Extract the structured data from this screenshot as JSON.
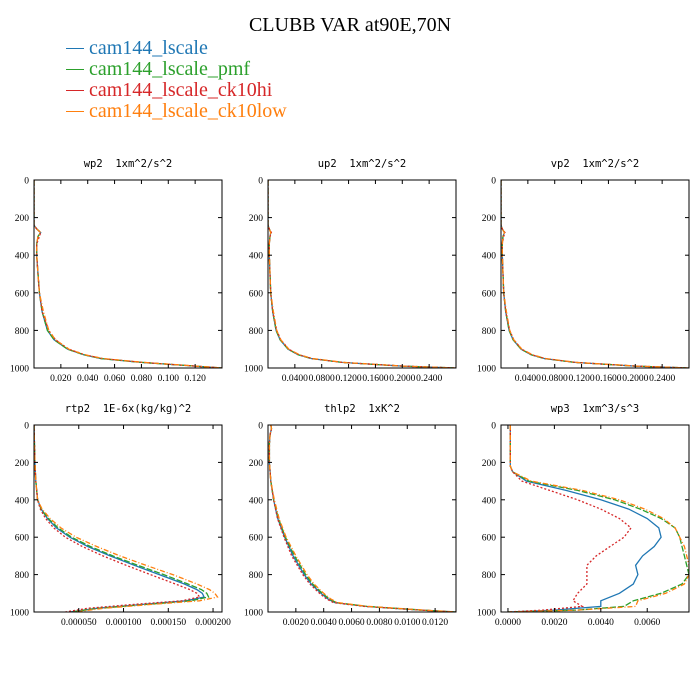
{
  "title": "CLUBB VAR at90E,70N",
  "legend": [
    {
      "name": "cam144_lscale",
      "color": "#1f77b4"
    },
    {
      "name": "cam144_lscale_pmf",
      "color": "#2ca02c"
    },
    {
      "name": "cam144_lscale_ck10hi",
      "color": "#d62728"
    },
    {
      "name": "cam144_lscale_ck10low",
      "color": "#ff7f0e"
    }
  ],
  "chart_data": [
    {
      "type": "line",
      "title": "wp2  1xm^2/s^2",
      "xlim": [
        0,
        0.14
      ],
      "ylim": [
        1000,
        0
      ],
      "xticks": [
        0.02,
        0.04,
        0.06,
        0.08,
        0.1,
        0.12
      ],
      "xtick_labels": [
        "0.020",
        "0.040",
        "0.060",
        "0.080",
        "0.100",
        "0.120"
      ],
      "yticks": [
        0,
        200,
        400,
        600,
        800,
        1000
      ],
      "y": [
        0,
        240,
        260,
        280,
        300,
        340,
        400,
        500,
        600,
        700,
        800,
        850,
        900,
        930,
        950,
        970,
        990,
        1000
      ],
      "series": [
        {
          "values": [
            0,
            0,
            0.002,
            0.005,
            0.003,
            0.002,
            0.002,
            0.003,
            0.004,
            0.006,
            0.01,
            0.015,
            0.025,
            0.037,
            0.05,
            0.08,
            0.12,
            0.14
          ]
        },
        {
          "values": [
            0,
            0,
            0.002,
            0.005,
            0.003,
            0.002,
            0.002,
            0.003,
            0.004,
            0.006,
            0.01,
            0.015,
            0.025,
            0.037,
            0.05,
            0.08,
            0.12,
            0.14
          ]
        },
        {
          "values": [
            0,
            0,
            0.002,
            0.005,
            0.004,
            0.002,
            0.002,
            0.003,
            0.004,
            0.006,
            0.011,
            0.016,
            0.026,
            0.038,
            0.051,
            0.081,
            0.12,
            0.14
          ]
        },
        {
          "values": [
            0,
            0,
            0.002,
            0.005,
            0.003,
            0.002,
            0.002,
            0.003,
            0.004,
            0.007,
            0.011,
            0.016,
            0.026,
            0.038,
            0.052,
            0.082,
            0.121,
            0.14
          ]
        }
      ]
    },
    {
      "type": "line",
      "title": "up2  1xm^2/s^2",
      "xlim": [
        0,
        0.28
      ],
      "ylim": [
        1000,
        0
      ],
      "xticks": [
        0.04,
        0.08,
        0.12,
        0.16,
        0.2,
        0.24
      ],
      "xtick_labels": [
        "0.0400",
        "0.0800",
        "0.1200",
        "0.1600",
        "0.2000",
        "0.2400"
      ],
      "yticks": [
        0,
        200,
        400,
        600,
        800,
        1000
      ],
      "y": [
        0,
        240,
        260,
        280,
        300,
        340,
        400,
        500,
        600,
        700,
        800,
        850,
        900,
        930,
        950,
        970,
        990,
        1000
      ],
      "series": [
        {
          "values": [
            0,
            0,
            0.002,
            0.004,
            0.003,
            0.002,
            0.002,
            0.003,
            0.004,
            0.007,
            0.012,
            0.018,
            0.03,
            0.045,
            0.065,
            0.11,
            0.2,
            0.28
          ]
        },
        {
          "values": [
            0,
            0,
            0.002,
            0.004,
            0.003,
            0.002,
            0.002,
            0.003,
            0.004,
            0.007,
            0.012,
            0.018,
            0.03,
            0.045,
            0.065,
            0.11,
            0.2,
            0.28
          ]
        },
        {
          "values": [
            0,
            0,
            0.002,
            0.005,
            0.003,
            0.002,
            0.002,
            0.003,
            0.004,
            0.007,
            0.013,
            0.019,
            0.031,
            0.046,
            0.066,
            0.111,
            0.201,
            0.28
          ]
        },
        {
          "values": [
            0,
            0,
            0.002,
            0.004,
            0.003,
            0.002,
            0.002,
            0.003,
            0.004,
            0.008,
            0.013,
            0.019,
            0.031,
            0.047,
            0.067,
            0.112,
            0.202,
            0.28
          ]
        }
      ]
    },
    {
      "type": "line",
      "title": "vp2  1xm^2/s^2",
      "xlim": [
        0,
        0.28
      ],
      "ylim": [
        1000,
        0
      ],
      "xticks": [
        0.04,
        0.08,
        0.12,
        0.16,
        0.2,
        0.24
      ],
      "xtick_labels": [
        "0.0400",
        "0.0800",
        "0.1200",
        "0.1600",
        "0.2000",
        "0.2400"
      ],
      "yticks": [
        0,
        200,
        400,
        600,
        800,
        1000
      ],
      "y": [
        0,
        240,
        260,
        280,
        300,
        340,
        400,
        500,
        600,
        700,
        800,
        850,
        900,
        930,
        950,
        970,
        990,
        1000
      ],
      "series": [
        {
          "values": [
            0,
            0,
            0.002,
            0.005,
            0.003,
            0.002,
            0.002,
            0.003,
            0.004,
            0.007,
            0.012,
            0.018,
            0.03,
            0.045,
            0.065,
            0.11,
            0.2,
            0.28
          ]
        },
        {
          "values": [
            0,
            0,
            0.002,
            0.005,
            0.003,
            0.002,
            0.002,
            0.003,
            0.004,
            0.007,
            0.012,
            0.018,
            0.03,
            0.045,
            0.065,
            0.11,
            0.2,
            0.28
          ]
        },
        {
          "values": [
            0,
            0,
            0.002,
            0.006,
            0.004,
            0.002,
            0.002,
            0.003,
            0.004,
            0.007,
            0.013,
            0.019,
            0.031,
            0.046,
            0.066,
            0.111,
            0.201,
            0.28
          ]
        },
        {
          "values": [
            0,
            0,
            0.002,
            0.005,
            0.003,
            0.002,
            0.002,
            0.003,
            0.004,
            0.008,
            0.013,
            0.019,
            0.031,
            0.047,
            0.067,
            0.112,
            0.202,
            0.28
          ]
        }
      ]
    },
    {
      "type": "line",
      "title": "rtp2  1E-6x(kg/kg)^2",
      "xlim": [
        0,
        0.00021
      ],
      "ylim": [
        1000,
        0
      ],
      "xticks": [
        5e-05,
        0.0001,
        0.00015,
        0.0002
      ],
      "xtick_labels": [
        "0.000050",
        "0.000100",
        "0.000150",
        "0.000200"
      ],
      "yticks": [
        0,
        200,
        400,
        600,
        800,
        1000
      ],
      "y": [
        0,
        200,
        300,
        400,
        450,
        500,
        550,
        600,
        650,
        700,
        750,
        800,
        850,
        880,
        900,
        920,
        940,
        960,
        980,
        1000
      ],
      "series": [
        {
          "values": [
            0,
            1e-06,
            2e-06,
            4e-06,
            8e-06,
            1.5e-05,
            2.5e-05,
            4e-05,
            6e-05,
            8.5e-05,
            0.000112,
            0.00014,
            0.000168,
            0.000182,
            0.000188,
            0.00019,
            0.00017,
            0.00012,
            7e-05,
            4e-05
          ]
        },
        {
          "values": [
            0,
            1e-06,
            2e-06,
            4e-06,
            8e-06,
            1.6e-05,
            2.7e-05,
            4.2e-05,
            6.3e-05,
            8.8e-05,
            0.000116,
            0.000145,
            0.000172,
            0.000187,
            0.000193,
            0.000195,
            0.000175,
            0.000125,
            7.2e-05,
            4e-05
          ]
        },
        {
          "values": [
            0,
            1e-06,
            2e-06,
            4e-06,
            7e-06,
            1.3e-05,
            2.2e-05,
            3.5e-05,
            5.4e-05,
            7.7e-05,
            0.000103,
            0.00013,
            0.000158,
            0.000174,
            0.000182,
            0.000185,
            0.000165,
            0.00011,
            6e-05,
            3.5e-05
          ]
        },
        {
          "values": [
            0,
            1e-06,
            2e-06,
            4e-06,
            9e-06,
            1.8e-05,
            3e-05,
            4.7e-05,
            7e-05,
            9.6e-05,
            0.000125,
            0.000155,
            0.000182,
            0.000196,
            0.000202,
            0.000205,
            0.000185,
            0.00013,
            7.8e-05,
            4.5e-05
          ]
        }
      ]
    },
    {
      "type": "line",
      "title": "thlp2  1xK^2",
      "xlim": [
        0,
        0.0135
      ],
      "ylim": [
        1000,
        0
      ],
      "xticks": [
        0.002,
        0.004,
        0.006,
        0.008,
        0.01,
        0.012
      ],
      "xtick_labels": [
        "0.0020",
        "0.0040",
        "0.0060",
        "0.0080",
        "0.0100",
        "0.0120"
      ],
      "yticks": [
        0,
        200,
        400,
        600,
        800,
        1000
      ],
      "y": [
        0,
        20,
        50,
        100,
        150,
        200,
        300,
        400,
        500,
        600,
        700,
        800,
        850,
        900,
        930,
        950,
        970,
        990,
        1000
      ],
      "series": [
        {
          "values": [
            0.0002,
            0.00025,
            0.00015,
            0.0001,
            0.0001,
            0.0001,
            0.0002,
            0.0004,
            0.0007,
            0.0012,
            0.0018,
            0.0026,
            0.0031,
            0.0038,
            0.0043,
            0.0048,
            0.007,
            0.011,
            0.0135
          ]
        },
        {
          "values": [
            0.0002,
            0.00025,
            0.00015,
            0.0001,
            0.0001,
            0.0001,
            0.0002,
            0.0004,
            0.00075,
            0.00125,
            0.0019,
            0.0027,
            0.0032,
            0.0039,
            0.0044,
            0.0049,
            0.0071,
            0.0111,
            0.0135
          ]
        },
        {
          "values": [
            0.0002,
            0.00025,
            0.00015,
            0.0001,
            0.0001,
            0.0001,
            0.0002,
            0.0004,
            0.00068,
            0.00115,
            0.0017,
            0.0025,
            0.003,
            0.0037,
            0.0042,
            0.0047,
            0.0069,
            0.0109,
            0.0135
          ]
        },
        {
          "values": [
            0.0002,
            0.00025,
            0.00015,
            0.0001,
            0.0001,
            0.0001,
            0.0002,
            0.00045,
            0.0008,
            0.0013,
            0.002,
            0.0028,
            0.0033,
            0.004,
            0.0045,
            0.005,
            0.0072,
            0.0112,
            0.0135
          ]
        }
      ]
    },
    {
      "type": "line",
      "title": "wp3  1xm^3/s^3",
      "xlim": [
        -0.0003,
        0.0078
      ],
      "ylim": [
        1000,
        0
      ],
      "xticks": [
        0,
        0.002,
        0.004,
        0.006
      ],
      "xtick_labels": [
        "0.0000",
        "0.0020",
        "0.0040",
        "0.0060"
      ],
      "yticks": [
        0,
        200,
        400,
        600,
        800,
        1000
      ],
      "y": [
        0,
        200,
        220,
        250,
        300,
        350,
        400,
        450,
        500,
        550,
        600,
        650,
        700,
        750,
        800,
        850,
        900,
        940,
        970,
        990,
        1000
      ],
      "series": [
        {
          "values": [
            0.0001,
            0.0001,
            0.0001,
            0.0002,
            0.0008,
            0.0025,
            0.004,
            0.0052,
            0.006,
            0.0065,
            0.0066,
            0.0063,
            0.0058,
            0.0055,
            0.0056,
            0.0054,
            0.0048,
            0.004,
            0.004,
            0.002,
            0.0
          ]
        },
        {
          "values": [
            0.0001,
            0.0001,
            0.0001,
            0.0002,
            0.0009,
            0.003,
            0.0046,
            0.0057,
            0.0066,
            0.0072,
            0.0074,
            0.0075,
            0.0076,
            0.0077,
            0.0078,
            0.0075,
            0.0066,
            0.0054,
            0.005,
            0.003,
            0.0
          ]
        },
        {
          "values": [
            0.0001,
            0.0001,
            0.0001,
            0.0002,
            0.0006,
            0.0018,
            0.003,
            0.004,
            0.0048,
            0.0053,
            0.005,
            0.0044,
            0.0038,
            0.0034,
            0.0034,
            0.0034,
            0.003,
            0.0028,
            0.0032,
            0.0015,
            0.0
          ]
        },
        {
          "values": [
            0.0001,
            0.0001,
            0.0001,
            0.0002,
            0.001,
            0.0032,
            0.0048,
            0.0059,
            0.0067,
            0.0072,
            0.0074,
            0.0076,
            0.0077,
            0.0078,
            0.0078,
            0.0076,
            0.0068,
            0.0056,
            0.0055,
            0.003,
            0.0
          ]
        }
      ]
    }
  ]
}
